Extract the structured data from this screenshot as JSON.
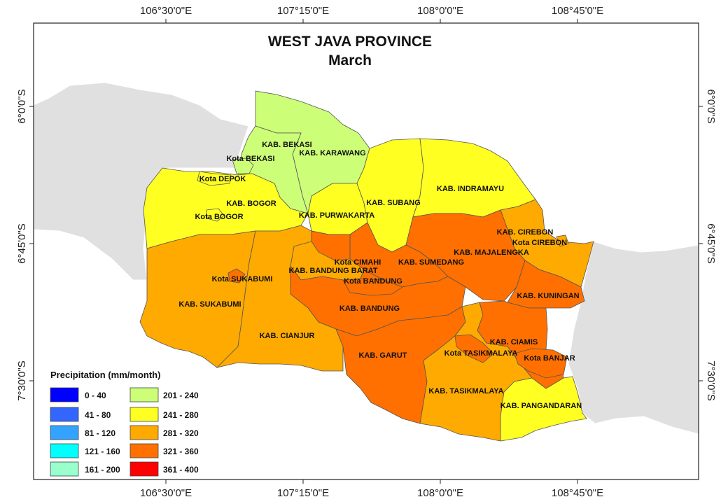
{
  "map": {
    "title": "WEST JAVA PROVINCE",
    "subtitle": "March",
    "ticks": {
      "top": [
        "106°30'0\"E",
        "107°15'0\"E",
        "108°0'0\"E",
        "108°45'0\"E"
      ],
      "bottom": [
        "106°30'0\"E",
        "107°15'0\"E",
        "108°0'0\"E",
        "108°45'0\"E"
      ],
      "left": [
        "6°0'0\"S",
        "6°45'0\"S",
        "7°30'0\"S"
      ],
      "right": [
        "6°0'0\"S",
        "6°45'0\"S",
        "7°30'0\"S"
      ]
    },
    "regions": [
      {
        "name": "KAB. BEKASI",
        "class": "201 - 240"
      },
      {
        "name": "KAB. KARAWANG",
        "class": "201 - 240"
      },
      {
        "name": "Kota BEKASI",
        "class": "201 - 240"
      },
      {
        "name": "Kota DEPOK",
        "class": "241 - 280"
      },
      {
        "name": "KAB. BOGOR",
        "class": "241 - 280"
      },
      {
        "name": "Kota BOGOR",
        "class": "241 - 280"
      },
      {
        "name": "KAB. PURWAKARTA",
        "class": "241 - 280"
      },
      {
        "name": "KAB. SUBANG",
        "class": "241 - 280"
      },
      {
        "name": "KAB. INDRAMAYU",
        "class": "241 - 280"
      },
      {
        "name": "KAB. CIREBON",
        "class": "281 - 320"
      },
      {
        "name": "Kota CIREBON",
        "class": "281 - 320"
      },
      {
        "name": "KAB. MAJALENGKA",
        "class": "321 - 360"
      },
      {
        "name": "KAB. SUMEDANG",
        "class": "321 - 360"
      },
      {
        "name": "Kota CIMAHI",
        "class": "321 - 360"
      },
      {
        "name": "KAB. BANDUNG BARAT",
        "class": "281 - 320"
      },
      {
        "name": "Kota BANDUNG",
        "class": "321 - 360"
      },
      {
        "name": "KAB. BANDUNG",
        "class": "321 - 360"
      },
      {
        "name": "Kota SUKABUMI",
        "class": "321 - 360"
      },
      {
        "name": "KAB. SUKABUMI",
        "class": "281 - 320"
      },
      {
        "name": "KAB. CIANJUR",
        "class": "281 - 320"
      },
      {
        "name": "KAB. KUNINGAN",
        "class": "321 - 360"
      },
      {
        "name": "KAB. CIAMIS",
        "class": "321 - 360"
      },
      {
        "name": "Kota TASIKMALAYA",
        "class": "321 - 360"
      },
      {
        "name": "Kota BANJAR",
        "class": "321 - 360"
      },
      {
        "name": "KAB. GARUT",
        "class": "321 - 360"
      },
      {
        "name": "KAB. TASIKMALAYA",
        "class": "281 - 320"
      },
      {
        "name": "KAB. PANGANDARAN",
        "class": "241 - 280"
      }
    ],
    "legend": {
      "title": "Precipitation (mm/month)",
      "items": [
        {
          "label": "0 - 40",
          "color": "#0000ff"
        },
        {
          "label": "41 - 80",
          "color": "#3366ff"
        },
        {
          "label": "81 - 120",
          "color": "#33a3ff"
        },
        {
          "label": "121 - 160",
          "color": "#00ffff"
        },
        {
          "label": "161 - 200",
          "color": "#99ffcc"
        },
        {
          "label": "201 - 240",
          "color": "#ccff77"
        },
        {
          "label": "241 - 280",
          "color": "#ffff22"
        },
        {
          "label": "281 - 320",
          "color": "#ffaa00"
        },
        {
          "label": "321 - 360",
          "color": "#ff7000"
        },
        {
          "label": "361 - 400",
          "color": "#ff0000"
        }
      ]
    },
    "colors": {
      "neighbor_land": "#e0e0e0",
      "border": "#555555",
      "background": "#ffffff"
    }
  }
}
